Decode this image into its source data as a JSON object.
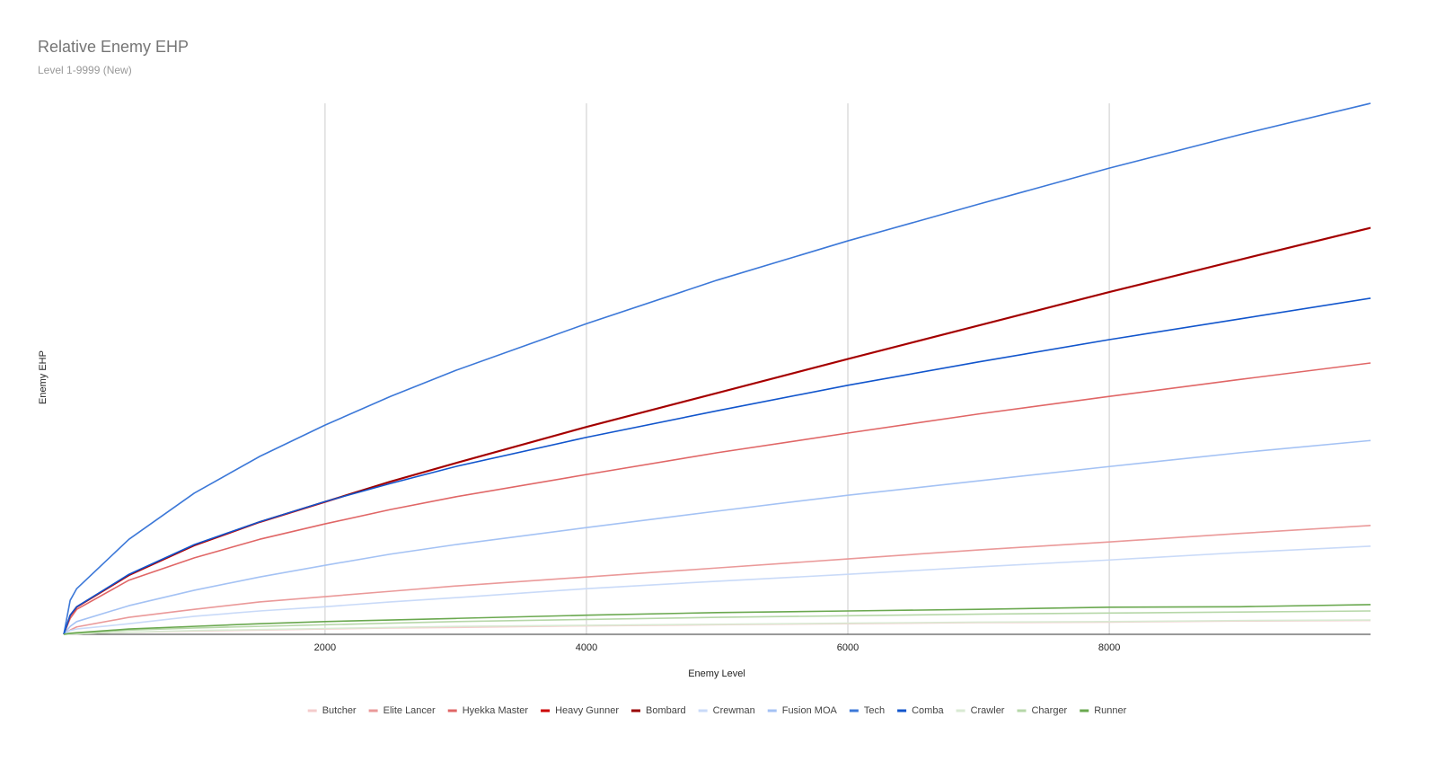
{
  "chart_data": {
    "type": "line",
    "title": "Relative Enemy EHP",
    "subtitle": "Level 1-9999 (New)",
    "x_label": "Enemy Level",
    "y_label": "Enemy EHP",
    "x": [
      1,
      50,
      100,
      500,
      1000,
      1500,
      2000,
      2500,
      3000,
      4000,
      5000,
      6000,
      7000,
      8000,
      9000,
      9999
    ],
    "xlim": [
      1,
      9999
    ],
    "xticks": [
      2000,
      4000,
      6000,
      8000
    ],
    "ylim": [
      0,
      100
    ],
    "grid": true,
    "legend": "bottom",
    "series": [
      {
        "name": "Butcher",
        "color": "#f4cccc",
        "values": [
          0,
          0.1,
          0.1,
          0.4,
          0.6,
          0.8,
          1.0,
          1.2,
          1.3,
          1.6,
          1.8,
          2.0,
          2.2,
          2.3,
          2.5,
          2.6
        ]
      },
      {
        "name": "Elite Lancer",
        "color": "#ea9999",
        "values": [
          0,
          0.8,
          1.4,
          3.2,
          4.7,
          6.1,
          7.1,
          8.1,
          9.1,
          10.8,
          12.5,
          14.2,
          15.9,
          17.4,
          19.0,
          20.5
        ]
      },
      {
        "name": "Hyekka Master",
        "color": "#e06666",
        "values": [
          0,
          3.0,
          4.7,
          10.2,
          14.4,
          17.9,
          20.8,
          23.5,
          25.9,
          30.1,
          34.2,
          37.9,
          41.5,
          44.8,
          48.0,
          51.1
        ]
      },
      {
        "name": "Heavy Gunner",
        "color": "#cc0000",
        "values": [
          0,
          3.5,
          5.1,
          11.1,
          16.7,
          21.1,
          24.9,
          28.7,
          32.2,
          39.0,
          45.4,
          51.8,
          58.1,
          64.4,
          70.5,
          76.5
        ]
      },
      {
        "name": "Bombard",
        "color": "#990000",
        "values": [
          0,
          3.6,
          5.2,
          11.2,
          16.8,
          21.2,
          25.0,
          28.8,
          32.3,
          39.1,
          45.5,
          51.9,
          58.2,
          64.5,
          70.6,
          76.6
        ]
      },
      {
        "name": "Crewman",
        "color": "#c9daf8",
        "values": [
          0,
          0.7,
          1.0,
          2.0,
          3.4,
          4.4,
          5.2,
          6.1,
          6.9,
          8.6,
          10.0,
          11.3,
          12.7,
          14.0,
          15.4,
          16.6
        ]
      },
      {
        "name": "Fusion MOA",
        "color": "#a4c2f4",
        "values": [
          0,
          1.5,
          2.4,
          5.4,
          8.3,
          10.8,
          13.0,
          15.1,
          16.9,
          20.1,
          23.2,
          26.2,
          28.9,
          31.6,
          34.2,
          36.5
        ]
      },
      {
        "name": "Tech",
        "color": "#3c78d8",
        "values": [
          0,
          6.4,
          8.6,
          17.9,
          26.6,
          33.5,
          39.4,
          44.8,
          49.7,
          58.5,
          66.7,
          74.1,
          81.0,
          87.8,
          94.1,
          100
        ]
      },
      {
        "name": "Comba",
        "color": "#1155cc",
        "values": [
          0,
          3.6,
          5.2,
          11.3,
          16.9,
          21.2,
          25.0,
          28.4,
          31.6,
          37.1,
          42.1,
          46.9,
          51.3,
          55.5,
          59.4,
          63.3
        ]
      },
      {
        "name": "Crawler",
        "color": "#d9ead3",
        "values": [
          0,
          0.1,
          0.1,
          0.4,
          0.7,
          0.9,
          1.1,
          1.3,
          1.5,
          1.7,
          1.9,
          2.1,
          2.3,
          2.4,
          2.6,
          2.7
        ]
      },
      {
        "name": "Charger",
        "color": "#b6d7a8",
        "values": [
          0,
          0.1,
          0.2,
          0.8,
          1.2,
          1.5,
          1.8,
          2.1,
          2.4,
          2.8,
          3.2,
          3.5,
          3.8,
          4.0,
          4.2,
          4.4
        ]
      },
      {
        "name": "Runner",
        "color": "#6aa84f",
        "values": [
          0,
          0.2,
          0.3,
          1.0,
          1.5,
          2.0,
          2.4,
          2.7,
          3.0,
          3.6,
          4.1,
          4.4,
          4.7,
          5.1,
          5.2,
          5.6
        ]
      }
    ]
  }
}
